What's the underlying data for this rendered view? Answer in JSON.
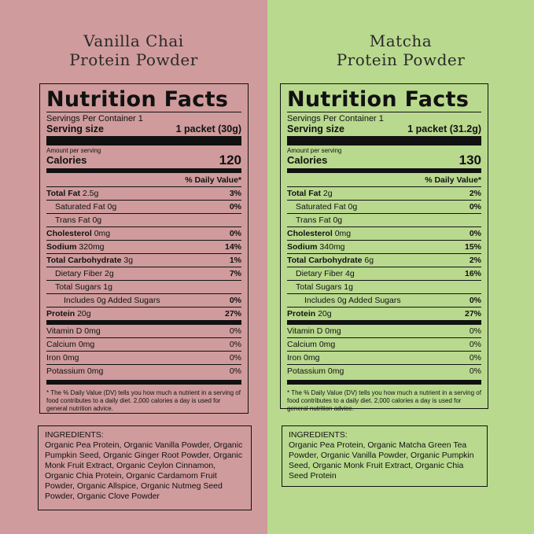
{
  "products": [
    {
      "title_line1": "Vanilla Chai",
      "title_line2": "Protein Powder",
      "panel_color": "#cf9b9c",
      "heading": "Nutrition Facts",
      "servings_per_container": "Servings Per Container 1",
      "serving_size_label": "Serving size",
      "serving_size_value": "1 packet (30g)",
      "amount_per_serving": "Amount per serving",
      "calories_label": "Calories",
      "calories_value": "120",
      "dv_header": "% Daily Value*",
      "nutrients": [
        {
          "name": "Total Fat",
          "amount": "2.5g",
          "dv": "3%"
        },
        {
          "name": "Saturated Fat 0g",
          "amount": "",
          "dv": "0%"
        },
        {
          "name": "Trans Fat 0g",
          "amount": "",
          "dv": ""
        },
        {
          "name": "Cholesterol",
          "amount": "0mg",
          "dv": "0%"
        },
        {
          "name": "Sodium",
          "amount": "320mg",
          "dv": "14%"
        },
        {
          "name": "Total Carbohydrate",
          "amount": "3g",
          "dv": "1%"
        },
        {
          "name": "Dietary Fiber 2g",
          "amount": "",
          "dv": "7%"
        },
        {
          "name": "Total Sugars 1g",
          "amount": "",
          "dv": ""
        },
        {
          "name": "Includes 0g Added Sugars",
          "amount": "",
          "dv": "0%"
        },
        {
          "name": "Protein",
          "amount": "20g",
          "dv": "27%"
        }
      ],
      "vitamins": [
        {
          "name": "Vitamin D 0mg",
          "dv": "0%"
        },
        {
          "name": "Calcium 0mg",
          "dv": "0%"
        },
        {
          "name": "Iron 0mg",
          "dv": "0%"
        },
        {
          "name": "Potassium 0mg",
          "dv": "0%"
        }
      ],
      "footnote": "* The % Daily Value (DV) tells you how much a nutrient in a serving of food contributes to a daily diet. 2,000 calories a day is used for general nutrition advice.",
      "ingredients_heading": "INGREDIENTS:",
      "ingredients": "Organic Pea Protein, Organic Vanilla Powder, Organic Pumpkin Seed, Organic Ginger Root Powder, Organic Monk Fruit Extract, Organic Ceylon Cinnamon, Organic Chia Protein, Organic Cardamom Fruit Powder, Organic Allspice, Organic Nutmeg Seed Powder, Organic Clove Powder"
    },
    {
      "title_line1": "Matcha",
      "title_line2": "Protein Powder",
      "panel_color": "#b9d98e",
      "heading": "Nutrition Facts",
      "servings_per_container": "Servings Per Container 1",
      "serving_size_label": "Serving size",
      "serving_size_value": "1 packet (31.2g)",
      "amount_per_serving": "Amount per serving",
      "calories_label": "Calories",
      "calories_value": "130",
      "dv_header": "% Daily Value*",
      "nutrients": [
        {
          "name": "Total Fat",
          "amount": "2g",
          "dv": "2%"
        },
        {
          "name": "Saturated Fat 0g",
          "amount": "",
          "dv": "0%"
        },
        {
          "name": "Trans Fat 0g",
          "amount": "",
          "dv": ""
        },
        {
          "name": "Cholesterol",
          "amount": "0mg",
          "dv": "0%"
        },
        {
          "name": "Sodium",
          "amount": "340mg",
          "dv": "15%"
        },
        {
          "name": "Total Carbohydrate",
          "amount": "6g",
          "dv": "2%"
        },
        {
          "name": "Dietary Fiber 4g",
          "amount": "",
          "dv": "16%"
        },
        {
          "name": "Total Sugars 1g",
          "amount": "",
          "dv": ""
        },
        {
          "name": "Includes 0g Added Sugars",
          "amount": "",
          "dv": "0%"
        },
        {
          "name": "Protein",
          "amount": "20g",
          "dv": "27%"
        }
      ],
      "vitamins": [
        {
          "name": "Vitamin D 0mg",
          "dv": "0%"
        },
        {
          "name": "Calcium 0mg",
          "dv": "0%"
        },
        {
          "name": "Iron 0mg",
          "dv": "0%"
        },
        {
          "name": "Potassium 0mg",
          "dv": "0%"
        }
      ],
      "footnote": "* The % Daily Value (DV) tells you how much a nutrient in a serving of food contributes to a daily diet. 2,000 calories a day is used for general nutrition advice.",
      "ingredients_heading": "INGREDIENTS:",
      "ingredients": "Organic Pea Protein, Organic Matcha Green Tea Powder, Organic Vanilla Powder, Organic Pumpkin Seed, Organic Monk Fruit Extract, Organic Chia Seed Protein"
    }
  ]
}
